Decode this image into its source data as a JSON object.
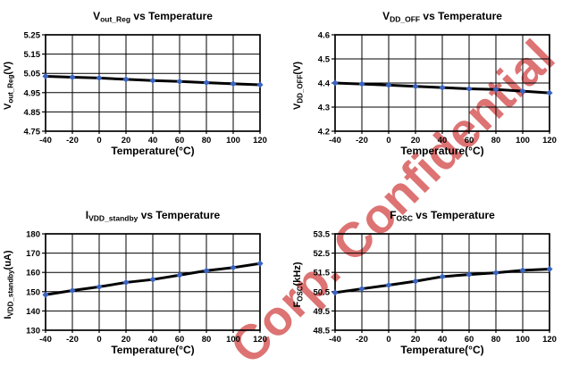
{
  "page": {
    "background": "#ffffff"
  },
  "watermark": {
    "text": "Corp. Confidential",
    "color": "#d96060",
    "angle_deg": -45
  },
  "chart_data": [
    {
      "type": "line",
      "title": {
        "prefix": "V",
        "sub": "out_Reg",
        "suffix": " vs Temperature"
      },
      "ylabel": {
        "prefix": "V",
        "sub": "out_Reg",
        "suffix": "(V)"
      },
      "xlabel": "Temperature(°C)",
      "xlim": [
        -40,
        120
      ],
      "ylim": [
        4.75,
        5.25
      ],
      "x_ticks": [
        {
          "value": -40,
          "label": "-40"
        },
        {
          "value": -20,
          "label": "-20"
        },
        {
          "value": 0,
          "label": "0"
        },
        {
          "value": 20,
          "label": "20"
        },
        {
          "value": 40,
          "label": "40"
        },
        {
          "value": 60,
          "label": "60"
        },
        {
          "value": 80,
          "label": "80"
        },
        {
          "value": 100,
          "label": "100"
        },
        {
          "value": 120,
          "label": "120"
        }
      ],
      "y_ticks": [
        {
          "value": 4.75,
          "label": "4.75"
        },
        {
          "value": 4.85,
          "label": "4.85"
        },
        {
          "value": 4.95,
          "label": "4.95"
        },
        {
          "value": 5.05,
          "label": "5.05"
        },
        {
          "value": 5.15,
          "label": "5.15"
        },
        {
          "value": 5.25,
          "label": "5.25"
        }
      ],
      "x": [
        -40,
        -20,
        0,
        20,
        40,
        60,
        80,
        100,
        120
      ],
      "y": [
        5.035,
        5.03,
        5.026,
        5.019,
        5.013,
        5.008,
        5.002,
        4.996,
        4.991
      ],
      "grid": true,
      "line_color": "#000000",
      "marker": "diamond",
      "marker_color": "#3a64c0"
    },
    {
      "type": "line",
      "title": {
        "prefix": "V",
        "sub": "DD_OFF",
        "suffix": " vs Temperature"
      },
      "ylabel": {
        "prefix": "V",
        "sub": "DD_OFF",
        "suffix": "(V)"
      },
      "xlabel": "Temperature(°C)",
      "xlim": [
        -40,
        120
      ],
      "ylim": [
        4.2,
        4.6
      ],
      "x_ticks": [
        {
          "value": -40,
          "label": "-40"
        },
        {
          "value": -20,
          "label": "-20"
        },
        {
          "value": 0,
          "label": "0"
        },
        {
          "value": 20,
          "label": "20"
        },
        {
          "value": 40,
          "label": "40"
        },
        {
          "value": 60,
          "label": "60"
        },
        {
          "value": 80,
          "label": "80"
        },
        {
          "value": 100,
          "label": "100"
        },
        {
          "value": 120,
          "label": "120"
        }
      ],
      "y_ticks": [
        {
          "value": 4.2,
          "label": "4.2"
        },
        {
          "value": 4.3,
          "label": "4.3"
        },
        {
          "value": 4.4,
          "label": "4.4"
        },
        {
          "value": 4.5,
          "label": "4.5"
        },
        {
          "value": 4.6,
          "label": "4.6"
        }
      ],
      "x": [
        -40,
        -20,
        0,
        20,
        40,
        60,
        80,
        100,
        120
      ],
      "y": [
        4.4,
        4.396,
        4.391,
        4.386,
        4.381,
        4.376,
        4.373,
        4.366,
        4.359
      ],
      "grid": true,
      "line_color": "#000000",
      "marker": "diamond",
      "marker_color": "#3a64c0"
    },
    {
      "type": "line",
      "title": {
        "prefix": "I",
        "sub": "VDD_standby",
        "suffix": " vs Temperature"
      },
      "ylabel": {
        "prefix": "I",
        "sub": "VDD_standby",
        "suffix": "(uA)"
      },
      "xlabel": "Temperature(°C)",
      "xlim": [
        -40,
        120
      ],
      "ylim": [
        130,
        180
      ],
      "x_ticks": [
        {
          "value": -40,
          "label": "-40"
        },
        {
          "value": -20,
          "label": "-20"
        },
        {
          "value": 0,
          "label": "0"
        },
        {
          "value": 20,
          "label": "20"
        },
        {
          "value": 40,
          "label": "40"
        },
        {
          "value": 60,
          "label": "60"
        },
        {
          "value": 80,
          "label": "80"
        },
        {
          "value": 100,
          "label": "100"
        },
        {
          "value": 120,
          "label": "120"
        }
      ],
      "y_ticks": [
        {
          "value": 130,
          "label": "130"
        },
        {
          "value": 140,
          "label": "140"
        },
        {
          "value": 150,
          "label": "150"
        },
        {
          "value": 160,
          "label": "160"
        },
        {
          "value": 170,
          "label": "170"
        },
        {
          "value": 180,
          "label": "180"
        }
      ],
      "x": [
        -40,
        -20,
        0,
        20,
        40,
        60,
        80,
        100,
        120
      ],
      "y": [
        148.4,
        150.6,
        152.5,
        154.8,
        156.3,
        158.6,
        160.9,
        162.5,
        164.6
      ],
      "grid": true,
      "line_color": "#000000",
      "marker": "diamond",
      "marker_color": "#3a64c0"
    },
    {
      "type": "line",
      "title": {
        "prefix": "F",
        "sub": "OSC",
        "suffix": " vs Temperature"
      },
      "ylabel": {
        "prefix": "F",
        "sub": "OSC",
        "suffix": "(kHz)"
      },
      "xlabel": "Temperature(°C)",
      "xlim": [
        -40,
        120
      ],
      "ylim": [
        48.5,
        53.5
      ],
      "x_ticks": [
        {
          "value": -40,
          "label": "-40"
        },
        {
          "value": -20,
          "label": "-20"
        },
        {
          "value": 0,
          "label": "0"
        },
        {
          "value": 20,
          "label": "20"
        },
        {
          "value": 40,
          "label": "40"
        },
        {
          "value": 60,
          "label": "60"
        },
        {
          "value": 80,
          "label": "80"
        },
        {
          "value": 100,
          "label": "100"
        },
        {
          "value": 120,
          "label": "120"
        }
      ],
      "y_ticks": [
        {
          "value": 48.5,
          "label": "48.5"
        },
        {
          "value": 49.5,
          "label": "49.5"
        },
        {
          "value": 50.5,
          "label": "50.5"
        },
        {
          "value": 51.5,
          "label": "51.5"
        },
        {
          "value": 52.5,
          "label": "52.5"
        },
        {
          "value": 53.5,
          "label": "53.5"
        }
      ],
      "x": [
        -40,
        -20,
        0,
        20,
        40,
        60,
        80,
        100,
        120
      ],
      "y": [
        50.45,
        50.65,
        50.84,
        51.04,
        51.28,
        51.39,
        51.48,
        51.61,
        51.67
      ],
      "grid": true,
      "line_color": "#000000",
      "marker": "diamond",
      "marker_color": "#3a64c0"
    }
  ]
}
